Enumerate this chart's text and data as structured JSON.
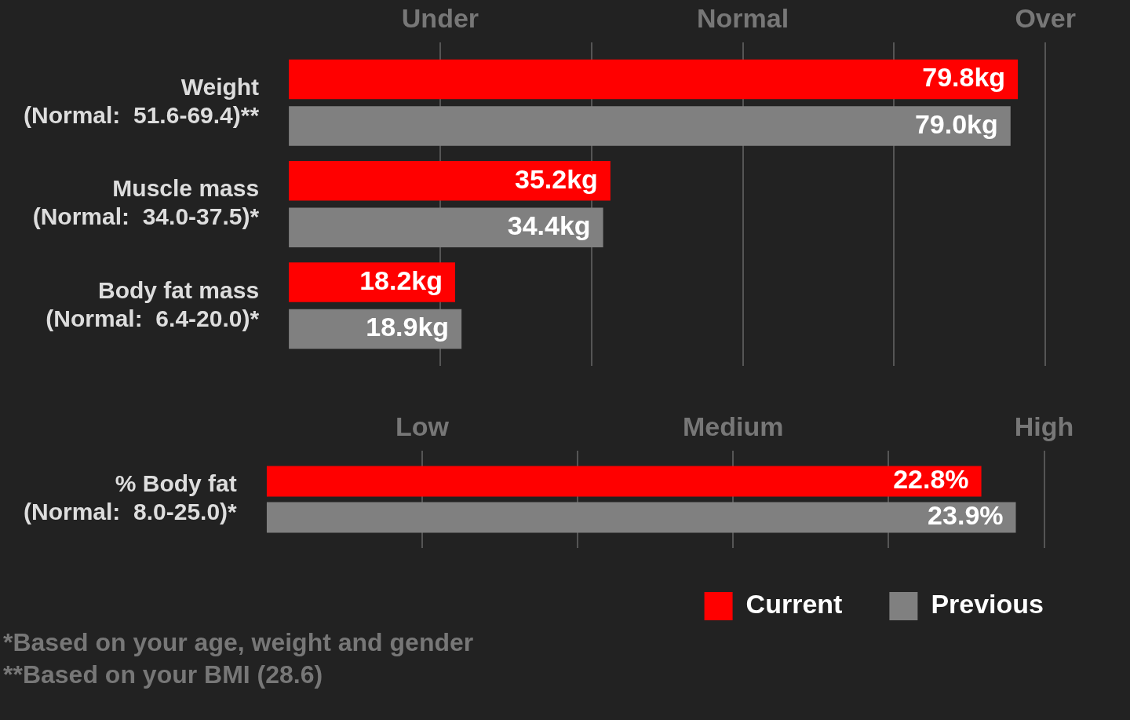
{
  "chart_data": [
    {
      "type": "bar",
      "orientation": "horizontal",
      "legend": false,
      "categories": [
        "Weight\n(Normal:  51.6-69.4)**",
        "Muscle mass\n(Normal:  34.0-37.5)*",
        "Body fat mass\n(Normal:  6.4-20.0)*"
      ],
      "series": [
        {
          "color": "#ff0000",
          "values": [
            79.8,
            35.2,
            18.2
          ],
          "value_labels": [
            "79.8kg",
            "35.2kg",
            "18.2kg"
          ]
        },
        {
          "color": "#808080",
          "values": [
            79.0,
            34.4,
            18.9
          ],
          "value_labels": [
            "79.0kg",
            "34.4kg",
            "18.9kg"
          ]
        }
      ],
      "annotations": [
        "Under",
        "Normal",
        "Over"
      ]
    },
    {
      "type": "bar",
      "orientation": "horizontal",
      "legend": "bottom right",
      "categories": [
        "% Body fat\n(Normal:  8.0-25.0)*"
      ],
      "series": [
        {
          "name": "Current",
          "color": "#ff0000",
          "values": [
            22.8
          ],
          "value_labels": [
            "22.8%"
          ]
        },
        {
          "name": "Previous",
          "color": "#808080",
          "values": [
            23.9
          ],
          "value_labels": [
            "23.9%"
          ]
        }
      ],
      "annotations": [
        "Low",
        "Medium",
        "High"
      ]
    },
    {
      "type": "other",
      "annotations": [
        "*Based on your age, weight and gender",
        "**Based on your BMI (28.6)"
      ]
    }
  ]
}
